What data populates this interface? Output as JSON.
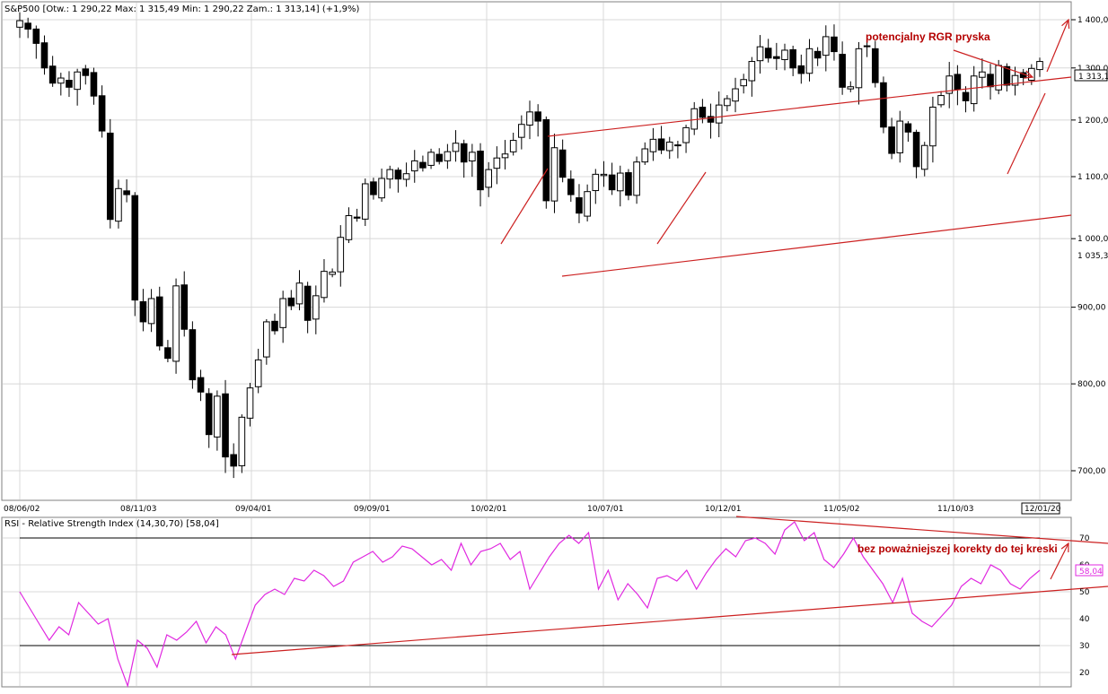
{
  "chart_data": [
    {
      "type": "candlestick",
      "title": "S&P500",
      "header": "S&P500 [Otw.: 1 290,22  Max: 1 315,49  Min: 1 290,22  Zam.: 1 313,14] (+1,9%)",
      "ylim": [
        660,
        1420
      ],
      "y_scale": "log",
      "y_ticks": [
        700,
        800,
        900,
        1000,
        1100,
        1200,
        1300,
        1400
      ],
      "y_tick_labels": [
        "700,00",
        "800,00",
        "900,00",
        "1 000,00",
        "1 100,00",
        "1 200,00",
        "1 300,00",
        "1 400,00"
      ],
      "x_tick_labels": [
        "08/06/02",
        "08/11/03",
        "09/04/01",
        "09/09/01",
        "10/02/01",
        "10/07/01",
        "10/12/01",
        "11/05/02",
        "11/10/03",
        "12/01/20"
      ],
      "last_value_label": "1 313,1",
      "marker_label": "1 035,3",
      "grid": true,
      "legend": "none",
      "close_path": [
        1398,
        1380,
        1350,
        1300,
        1270,
        1280,
        1262,
        1292,
        1285,
        1245,
        1180,
        1030,
        1080,
        1070,
        910,
        880,
        912,
        848,
        832,
        930,
        870,
        805,
        790,
        740,
        785,
        715,
        705,
        760,
        795,
        830,
        880,
        868,
        912,
        902,
        934,
        882,
        916,
        951,
        950,
        1002,
        1036,
        1032,
        1088,
        1070,
        1097,
        1112,
        1096,
        1105,
        1127,
        1115,
        1142,
        1126,
        1143,
        1158,
        1125,
        1142,
        1078,
        1112,
        1132,
        1139,
        1163,
        1192,
        1215,
        1198,
        1060,
        1150,
        1099,
        1070,
        1040,
        1075,
        1104,
        1104,
        1078,
        1106,
        1069,
        1125,
        1148,
        1165,
        1146,
        1160,
        1155,
        1186,
        1221,
        1205,
        1196,
        1228,
        1240,
        1259,
        1277,
        1313,
        1343,
        1320,
        1319,
        1336,
        1300,
        1289,
        1339,
        1320,
        1364,
        1333,
        1262,
        1263,
        1339,
        1345,
        1271,
        1187,
        1140,
        1198,
        1178,
        1117,
        1154,
        1224,
        1246,
        1284,
        1258,
        1236,
        1284,
        1292,
        1263,
        1305,
        1266,
        1285,
        1281,
        1299,
        1313
      ],
      "annotations": [
        {
          "text": "potencjalny RGR pryska"
        }
      ]
    },
    {
      "type": "line",
      "title": "RSI - Relative Strength Index (14,30,70) [58,04]",
      "series": [
        {
          "name": "RSI",
          "color": "#e028e0",
          "values": [
            50,
            44,
            38,
            32,
            37,
            34,
            46,
            42,
            38,
            40,
            25,
            15,
            32,
            29,
            22,
            34,
            32,
            35,
            39,
            31,
            37,
            34,
            25,
            35,
            45,
            49,
            51,
            49,
            55,
            54,
            58,
            56,
            52,
            54,
            61,
            63,
            65,
            61,
            63,
            67,
            66,
            63,
            60,
            62,
            58,
            68,
            60,
            65,
            66,
            68,
            62,
            65,
            51,
            57,
            63,
            68,
            71,
            68,
            72,
            51,
            58,
            47,
            53,
            49,
            44,
            55,
            56,
            54,
            58,
            51,
            57,
            62,
            66,
            63,
            69,
            70,
            68,
            64,
            73,
            76,
            69,
            72,
            62,
            59,
            64,
            70,
            63,
            58,
            53,
            46,
            55,
            42,
            39,
            37,
            41,
            45,
            52,
            55,
            53,
            60,
            58,
            53,
            51,
            55,
            58
          ]
        }
      ],
      "ylim": [
        15,
        80
      ],
      "y_ticks": [
        20,
        30,
        40,
        50,
        60,
        70
      ],
      "y_tick_labels": [
        "20",
        "30",
        "40",
        "50",
        "60",
        "70"
      ],
      "reference_lines": [
        30,
        70
      ],
      "last_value_label": "58,04",
      "grid": true,
      "legend": "none",
      "annotations": [
        {
          "text": "bez poważniejszej korekty do tej kreski"
        }
      ]
    }
  ]
}
